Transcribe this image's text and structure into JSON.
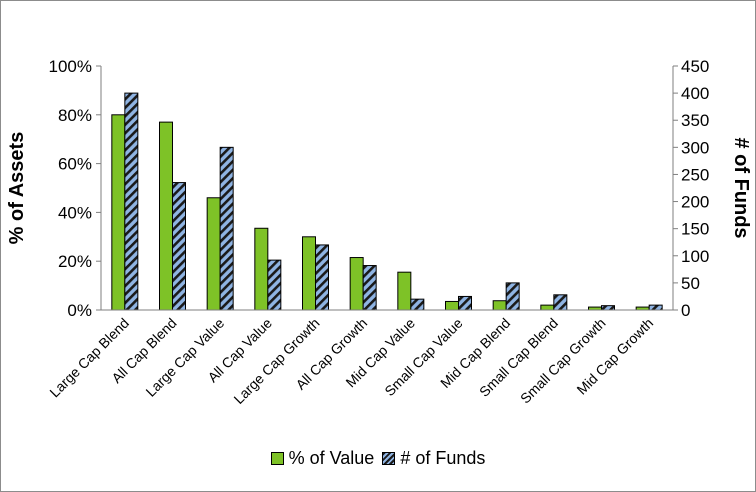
{
  "chart_data": {
    "type": "bar",
    "categories": [
      "Large Cap Blend",
      "All Cap Blend",
      "Large Cap Value",
      "All Cap Value",
      "Large Cap Growth",
      "All Cap Growth",
      "Mid Cap Value",
      "Small Cap Value",
      "Mid Cap Blend",
      "Small Cap Blend",
      "Small Cap Growth",
      "Mid Cap Growth"
    ],
    "series": [
      {
        "name": "% of Value",
        "axis": "left",
        "unit": "%",
        "color": "#7ec227",
        "values": [
          80,
          77,
          46,
          33.5,
          30,
          21.5,
          15.5,
          3.5,
          3.8,
          2,
          1.2,
          1.2
        ]
      },
      {
        "name": "# of Funds",
        "axis": "right",
        "color": "#8fb4e3",
        "pattern": "diagonal-hatch",
        "values": [
          400,
          235,
          300,
          92,
          120,
          82,
          20,
          25,
          50,
          28,
          8,
          9
        ]
      }
    ],
    "y_left": {
      "label": "% of Assets",
      "ticks": [
        "0%",
        "20%",
        "40%",
        "60%",
        "80%",
        "100%"
      ],
      "range": [
        0,
        100
      ]
    },
    "y_right": {
      "label": "# of Funds",
      "ticks": [
        "0",
        "50",
        "100",
        "150",
        "200",
        "250",
        "300",
        "350",
        "400",
        "450"
      ],
      "range": [
        0,
        450
      ]
    },
    "legend_position": "bottom",
    "grid": false
  }
}
